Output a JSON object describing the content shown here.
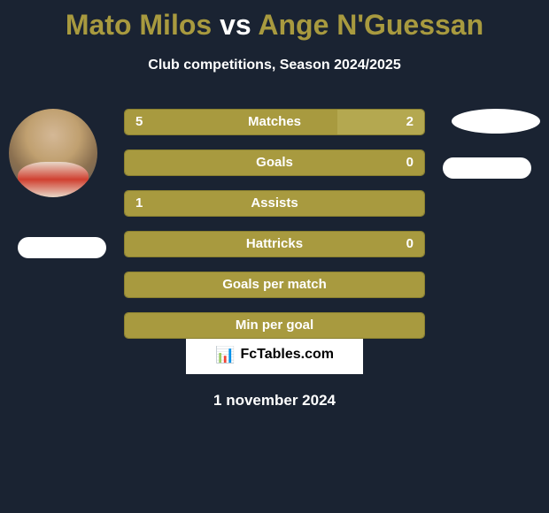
{
  "title": {
    "player1": "Mato Milos",
    "vs": "vs",
    "player2": "Ange N'Guessan"
  },
  "subtitle": "Club competitions, Season 2024/2025",
  "bars": [
    {
      "label": "Matches",
      "left_val": "5",
      "right_val": "2",
      "left_pct": 71,
      "right_pct": 29,
      "show_left": true,
      "show_right": true
    },
    {
      "label": "Goals",
      "left_val": "",
      "right_val": "0",
      "left_pct": 100,
      "right_pct": 0,
      "show_left": false,
      "show_right": true
    },
    {
      "label": "Assists",
      "left_val": "1",
      "right_val": "",
      "left_pct": 100,
      "right_pct": 0,
      "show_left": true,
      "show_right": false
    },
    {
      "label": "Hattricks",
      "left_val": "",
      "right_val": "0",
      "left_pct": 100,
      "right_pct": 0,
      "show_left": false,
      "show_right": true
    },
    {
      "label": "Goals per match",
      "left_val": "",
      "right_val": "",
      "left_pct": 100,
      "right_pct": 0,
      "show_left": false,
      "show_right": false
    },
    {
      "label": "Min per goal",
      "left_val": "",
      "right_val": "",
      "left_pct": 100,
      "right_pct": 0,
      "show_left": false,
      "show_right": false
    }
  ],
  "branding": {
    "icon": "📊",
    "text": "FcTables.com"
  },
  "date": "1 november 2024",
  "colors": {
    "bg": "#1a2332",
    "accent": "#a89a3f",
    "accent_light": "#b4a850",
    "white": "#ffffff"
  }
}
